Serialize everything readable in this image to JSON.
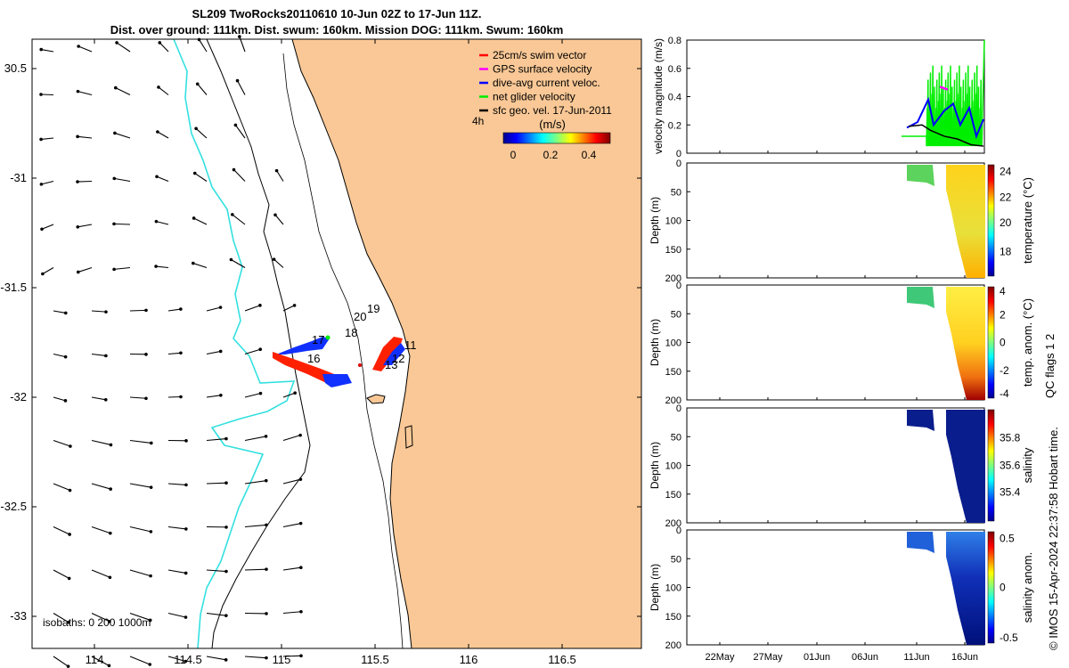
{
  "title": {
    "line1": "SL209 TwoRocks20110610 10-Jun 02Z to 17-Jun 11Z.",
    "line2": "Dist. over ground: 111km. Dist. swum: 160km. Mission DOG: 111km. Swum: 160km"
  },
  "map": {
    "xticks": [
      "114",
      "114.5",
      "115",
      "115.5",
      "116",
      "116.5"
    ],
    "yticks": [
      "30.5",
      "-31",
      "-31.5",
      "-32",
      "-32.5",
      "-33"
    ],
    "legend": [
      "25cm/s swim vector",
      "GPS surface velocity",
      "dive-avg current veloc.",
      "net glider velocity",
      "sfc geo. vel. 17-Jun-2011"
    ],
    "legend_colors": [
      "#ff0000",
      "#ff00ff",
      "#0000ff",
      "#00ee00",
      "#000000"
    ],
    "colorbar_title": "(m/s)",
    "colorbar_ticks": [
      "0",
      "0.2",
      "0.4"
    ],
    "interval_label": "4h",
    "day_labels": [
      "19",
      "20",
      "18",
      "17",
      "16",
      "11",
      "12",
      "13"
    ],
    "isobaths_label": "isobaths: 0   200  1000m",
    "land_color": "#f9c896",
    "isobath_color": "#33e0e0"
  },
  "chart_data": [
    {
      "type": "line",
      "ylabel": "velocity magnitude (m/s)",
      "ylim": [
        0,
        0.8
      ],
      "yticks": [
        "0",
        "0.2",
        "0.4",
        "0.6",
        "0.8"
      ],
      "xticks": [
        "22May",
        "27May",
        "01Jun",
        "06Jun",
        "11Jun",
        "16Jun"
      ]
    },
    {
      "type": "heatmap",
      "ylabel": "Depth (m)",
      "yticks": [
        "0",
        "50",
        "100",
        "150",
        "200"
      ],
      "colorbar_label": "temperature (°C)",
      "colorbar_ticks": [
        "24",
        "22",
        "20",
        "18"
      ]
    },
    {
      "type": "heatmap",
      "ylabel": "Depth (m)",
      "yticks": [
        "0",
        "50",
        "100",
        "150",
        "200"
      ],
      "colorbar_label": "temp. anom. (°C)",
      "colorbar_ticks": [
        "4",
        "2",
        "0",
        "-2",
        "-4"
      ]
    },
    {
      "type": "heatmap",
      "ylabel": "Depth (m)",
      "yticks": [
        "0",
        "50",
        "100",
        "150",
        "200"
      ],
      "colorbar_label": "salinity",
      "colorbar_ticks": [
        "35.8",
        "35.6",
        "35.4"
      ]
    },
    {
      "type": "heatmap",
      "ylabel": "Depth (m)",
      "yticks": [
        "0",
        "50",
        "100",
        "150",
        "200"
      ],
      "colorbar_label": "salinity anom.",
      "colorbar_ticks": [
        "0.5",
        "0",
        "-0.5"
      ]
    }
  ],
  "side_note": "QC flags 1  2",
  "copyright": "© IMOS 15-Apr-2024 22:37:58 Hobart time."
}
